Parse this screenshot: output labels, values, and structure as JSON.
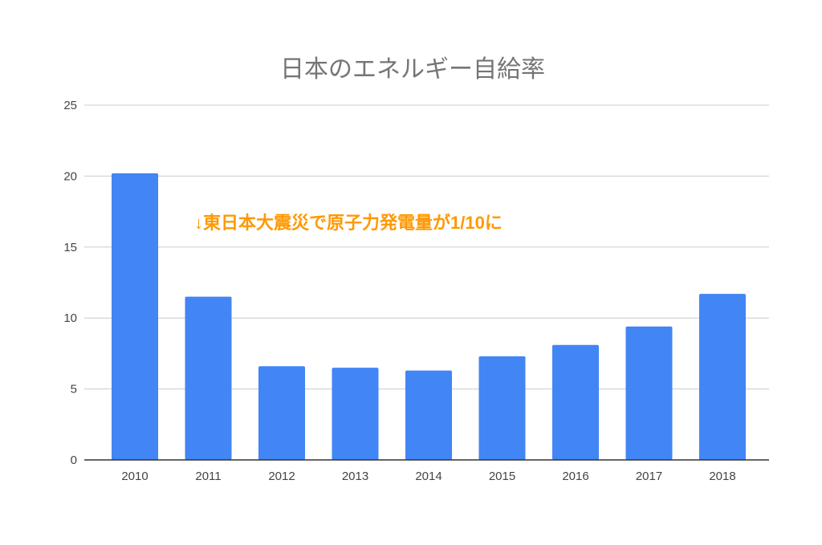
{
  "chart_data": {
    "type": "bar",
    "title": "日本のエネルギー自給率",
    "categories": [
      "2010",
      "2011",
      "2012",
      "2013",
      "2014",
      "2015",
      "2016",
      "2017",
      "2018"
    ],
    "values": [
      20.2,
      11.5,
      6.6,
      6.5,
      6.3,
      7.3,
      8.1,
      9.4,
      11.7
    ],
    "xlabel": "",
    "ylabel": "",
    "ylim": [
      0,
      25
    ],
    "yticks": [
      "0",
      "5",
      "10",
      "15",
      "20",
      "25"
    ],
    "grid": true,
    "legend": "none",
    "bar_color": "#4285f4",
    "annotations": [
      {
        "text": "↓東日本大震災で原子力発電量が1/10に",
        "color": "#ff9900"
      }
    ]
  }
}
